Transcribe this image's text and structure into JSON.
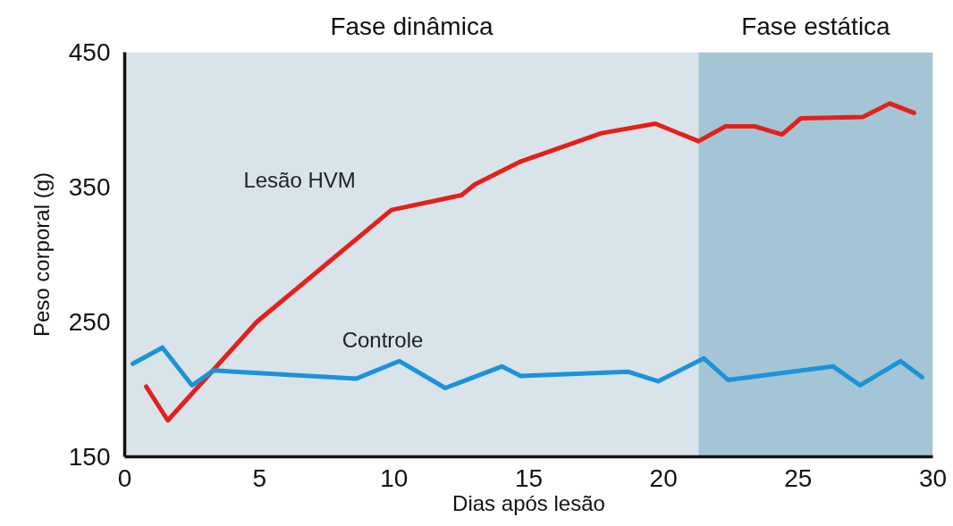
{
  "chart_data": {
    "type": "line",
    "xlabel": "Dias após lesão",
    "ylabel": "Peso corporal (g)",
    "xlim": [
      0,
      30
    ],
    "xticks": [
      0,
      5,
      10,
      15,
      20,
      25,
      30
    ],
    "ylim": [
      150,
      450
    ],
    "yticks": [
      150,
      250,
      350,
      450
    ],
    "grid": false,
    "legend": false,
    "marker": "none",
    "line_style": "solid",
    "bands": [
      {
        "axis": "x",
        "from": 0,
        "to": 21.3,
        "label": "Fase dinâmica",
        "color": "#d8e3ea"
      },
      {
        "axis": "x",
        "from": 21.3,
        "to": 30,
        "label": "Fase estática",
        "color": "#a3c5d5"
      }
    ],
    "series": [
      {
        "name": "Lesão HVM",
        "color": "#e3201b",
        "x": [
          0.8,
          1.6,
          4.9,
          9.9,
          12.5,
          13.0,
          14.7,
          17.7,
          19.7,
          21.3,
          22.3,
          23.4,
          24.4,
          25.1,
          27.4,
          28.4,
          29.3
        ],
        "values": [
          202,
          177,
          250,
          333,
          344,
          352,
          369,
          390,
          397,
          384,
          395,
          395,
          389,
          401,
          402,
          412,
          405
        ]
      },
      {
        "name": "Controle",
        "color": "#1c93d8",
        "x": [
          0.3,
          1.4,
          2.5,
          3.3,
          8.6,
          10.2,
          11.9,
          14.0,
          14.7,
          18.7,
          19.8,
          21.5,
          22.4,
          26.3,
          27.3,
          28.8,
          29.6
        ],
        "values": [
          219,
          231,
          203,
          214,
          208,
          221,
          201,
          217,
          210,
          213,
          206,
          223,
          207,
          217,
          203,
          221,
          209
        ]
      }
    ]
  }
}
